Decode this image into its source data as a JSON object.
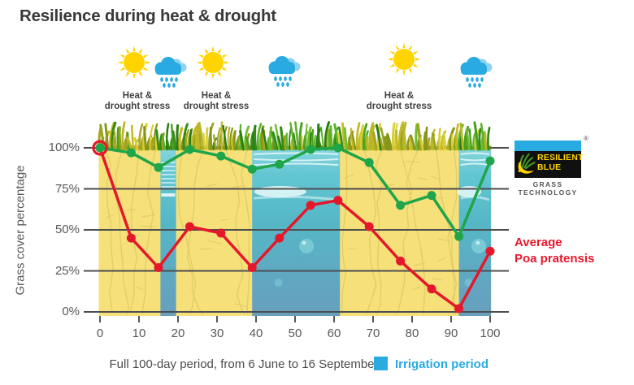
{
  "title": "Resilience during heat & drought",
  "weather": {
    "icons": [
      "sun-icon",
      "rain-cloud-icon",
      "sun-icon",
      "rain-cloud-icon",
      "sun-icon",
      "rain-cloud-icon"
    ],
    "stress_label": {
      "line1": "Heat &",
      "line2": "drought stress"
    }
  },
  "y_axis": {
    "label": "Grass cover percentage"
  },
  "caption": "Full 100-day period, from 6 June to 16 September",
  "legend": {
    "label": "Irrigation period",
    "color": "#29abe2"
  },
  "logo": {
    "name_line1": "RESILIENT",
    "name_line2": "BLUE",
    "tagline": "GRASS TECHNOLOGY",
    "registered_mark": "®"
  },
  "right_label": {
    "line1": "Average",
    "line2": "Poa pratensis",
    "color": "#e8182c"
  },
  "colors": {
    "resilient_green": "#1fa54a",
    "poa_red": "#e4182a",
    "irrigation_blue": "#29abe2",
    "soil_yellow": "#f6e07a",
    "grid_gray": "#4c4d4f"
  },
  "chart_data": {
    "type": "line",
    "x": [
      0,
      8,
      15,
      23,
      31,
      39,
      46,
      54,
      61,
      69,
      77,
      85,
      92,
      100
    ],
    "series": [
      {
        "name": "Resilient Blue grass technology",
        "color": "#1fa54a",
        "values": [
          100,
          97,
          88,
          99,
          95,
          87,
          90,
          99,
          100,
          91,
          65,
          71,
          46,
          92
        ]
      },
      {
        "name": "Average Poa pratensis",
        "color": "#e4182a",
        "values": [
          100,
          45,
          27,
          52,
          48,
          27,
          45,
          65,
          68,
          52,
          31,
          14,
          2,
          37
        ]
      }
    ],
    "irrigation_periods_days": [
      [
        15.5,
        19.5
      ],
      [
        39,
        61.5
      ],
      [
        92,
        100.2
      ]
    ],
    "xlim": [
      0,
      100
    ],
    "ylim": [
      0,
      100
    ],
    "y_ticks": [
      100,
      75,
      50,
      25,
      0
    ],
    "y_tick_labels": [
      "100%",
      "75%",
      "50%",
      "25%",
      "0%"
    ],
    "x_ticks": [
      0,
      10,
      20,
      30,
      40,
      50,
      60,
      70,
      80,
      90,
      100
    ],
    "ylabel": "Grass cover percentage",
    "x_caption": "Full 100-day period, from 6 June to 16 September",
    "grid": true,
    "legend_position": "bottom-right"
  }
}
